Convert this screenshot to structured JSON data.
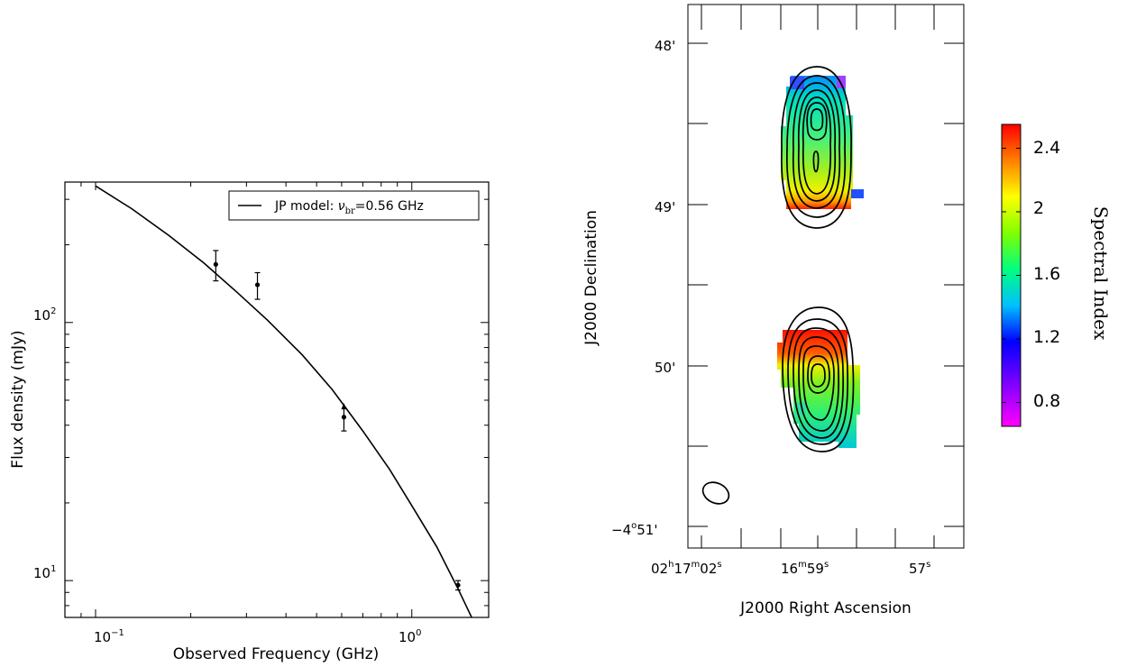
{
  "chart_data": [
    {
      "type": "scatter",
      "xlabel": "Observed Frequency (GHz)",
      "ylabel": "Flux density (mJy)",
      "xscale": "log",
      "yscale": "log",
      "xlim": [
        0.08,
        1.75
      ],
      "ylim": [
        7.2,
        350
      ],
      "grid": false,
      "legend_position": "top-right",
      "x_ticks": [
        {
          "base": "10",
          "exp": "−1"
        },
        {
          "base": "10",
          "exp": "0"
        }
      ],
      "y_ticks": [
        {
          "base": "10",
          "exp": "1"
        },
        {
          "base": "10",
          "exp": "2"
        }
      ],
      "series": [
        {
          "name": "JP model",
          "legend_label": "JP model: ",
          "legend_symbol": "ν",
          "legend_sub": "br",
          "legend_value": "=0.56 GHz",
          "kind": "line",
          "x": [
            0.1,
            0.13,
            0.17,
            0.22,
            0.28,
            0.35,
            0.45,
            0.56,
            0.7,
            0.85,
            1.0,
            1.2,
            1.4,
            1.6
          ],
          "y": [
            338,
            276,
            218,
            170,
            131,
            102,
            75,
            55,
            38,
            27,
            19.5,
            13.5,
            9.3,
            6.6
          ]
        },
        {
          "kind": "points",
          "x": [
            0.24,
            0.325,
            0.61,
            1.4
          ],
          "y": [
            168,
            140,
            43,
            9.6
          ],
          "yerr_low": [
            145,
            123,
            38,
            9.2
          ],
          "yerr_high": [
            190,
            156,
            48,
            10.0
          ],
          "lower_limit": [
            false,
            false,
            true,
            false
          ]
        }
      ]
    },
    {
      "type": "heatmap",
      "xlabel": "J2000 Right Ascension",
      "ylabel": "J2000 Declination",
      "x_ticks": [
        {
          "pre": "02",
          "s1": "h",
          "mid": "17",
          "s2": "m",
          "post": "02",
          "s3": "s"
        },
        {
          "pre": "16",
          "s1": "m",
          "mid": "59",
          "s2": "s",
          "post": "",
          "s3": ""
        },
        {
          "pre": "57",
          "s1": "s",
          "mid": "",
          "s2": "",
          "post": "",
          "s3": ""
        }
      ],
      "y_ticks": [
        "48'",
        "49'",
        "50'"
      ],
      "y_tick_last": {
        "pre": "−4",
        "deg": "o",
        "post": "51'"
      },
      "colorbar": {
        "label": "Spectral Index",
        "range": [
          0.65,
          2.55
        ],
        "ticks": [
          "2.4",
          "2",
          "1.6",
          "1.2",
          "0.8"
        ],
        "colors": [
          "#ff0000",
          "#ff8000",
          "#ffff00",
          "#80ff00",
          "#00ff80",
          "#00c0ff",
          "#0000ff",
          "#8000ff",
          "#ff00ff"
        ]
      }
    }
  ]
}
